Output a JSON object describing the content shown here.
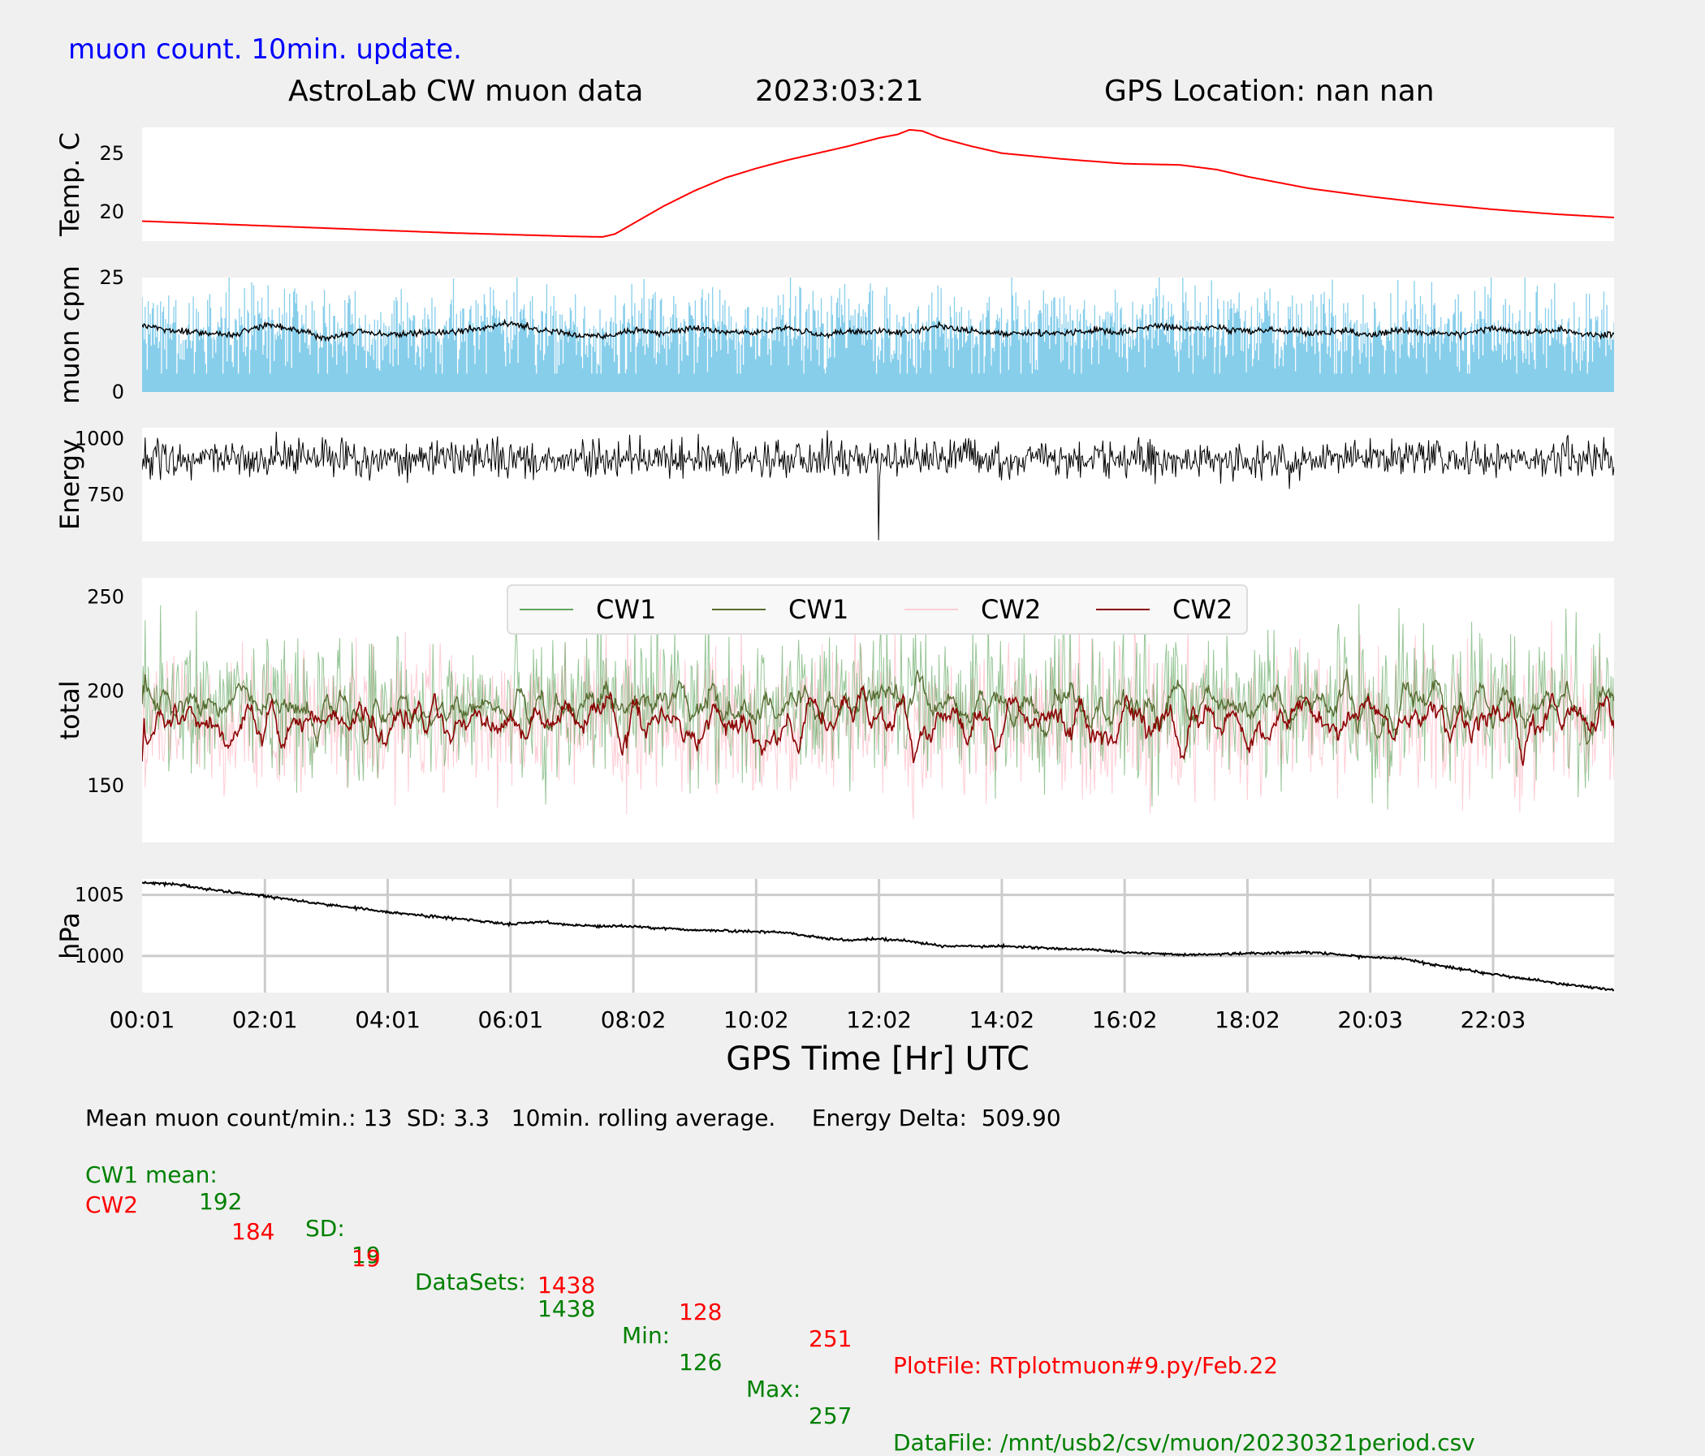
{
  "header": {
    "note": "muon count.  10min. update.",
    "title": "AstroLab CW muon data",
    "date": "2023:03:21",
    "gps": "GPS Location: nan   nan"
  },
  "colors": {
    "note": "#0000ff",
    "temp": "#ff0000",
    "cpm_bars": "#87ceeb",
    "cw1_raw": "#2e8b2e",
    "cw1_avg": "#556b2f",
    "cw2_raw": "#ffc0cb",
    "cw2_avg": "#8b0000",
    "green_text": "#008000",
    "red_text": "#ff0000"
  },
  "chart_data": {
    "type": "line",
    "xlabel": "GPS Time  [Hr] UTC",
    "x_ticks": [
      "00:01",
      "02:01",
      "04:01",
      "06:01",
      "08:02",
      "10:02",
      "12:02",
      "14:02",
      "16:02",
      "18:02",
      "20:03",
      "22:03"
    ],
    "x_tick_hours": [
      0,
      2,
      4,
      6,
      8,
      10,
      12,
      14,
      16,
      18,
      20,
      22
    ],
    "x_range_hours": [
      0,
      23.97
    ],
    "panels": [
      {
        "id": "temp",
        "ylabel": "Temp. C",
        "ylim": [
          17.5,
          27.2
        ],
        "yticks": [
          20,
          25
        ],
        "ytick_labels": [
          "20",
          "25"
        ],
        "series": [
          {
            "style": "line",
            "hours": [
              0,
              1,
              2,
              3,
              4,
              5,
              6,
              7,
              7.5,
              7.7,
              8,
              8.5,
              9,
              9.5,
              10,
              10.5,
              11,
              11.5,
              12,
              12.3,
              12.5,
              12.7,
              13,
              13.5,
              14,
              15,
              16,
              16.9,
              17.5,
              18,
              19,
              20,
              21,
              22,
              23,
              24
            ],
            "values": [
              19.2,
              19.0,
              18.8,
              18.6,
              18.4,
              18.2,
              18.05,
              17.9,
              17.85,
              18.1,
              19.0,
              20.5,
              21.8,
              22.9,
              23.7,
              24.4,
              25.0,
              25.6,
              26.3,
              26.6,
              27.0,
              26.9,
              26.3,
              25.6,
              25.0,
              24.5,
              24.1,
              24.0,
              23.6,
              23.0,
              22.0,
              21.3,
              20.7,
              20.2,
              19.8,
              19.5
            ]
          }
        ]
      },
      {
        "id": "cpm",
        "ylabel": "muon cpm",
        "ylim": [
          0,
          25
        ],
        "yticks": [
          0,
          25
        ],
        "ytick_labels": [
          "0",
          "25"
        ],
        "series": [
          {
            "style": "bars",
            "generated": true,
            "mean": 13,
            "sd": 3.3
          },
          {
            "style": "rolling",
            "hours": [
              0,
              0.5,
              1,
              1.5,
              2,
              2.5,
              3,
              3.5,
              4,
              4.5,
              5,
              5.5,
              6,
              6.5,
              7,
              7.5,
              8,
              8.5,
              9,
              9.5,
              10,
              10.5,
              11,
              11.5,
              12,
              12.5,
              13,
              13.5,
              14,
              14.5,
              15,
              15.5,
              16,
              16.5,
              17,
              17.5,
              18,
              18.5,
              19,
              19.5,
              20,
              20.5,
              21,
              21.5,
              22,
              22.5,
              23,
              23.5,
              24
            ],
            "values": [
              14.5,
              13.5,
              12.8,
              12.5,
              14.8,
              13.5,
              11.8,
              13.3,
              12.5,
              12.9,
              13.0,
              14.0,
              15.0,
              13.5,
              12.6,
              12.2,
              13.5,
              12.8,
              14.0,
              13.3,
              12.8,
              14.2,
              12.4,
              13.2,
              13.3,
              12.9,
              14.5,
              13.2,
              13.0,
              12.7,
              12.9,
              13.5,
              13.0,
              14.6,
              13.8,
              14.0,
              13.4,
              13.5,
              12.8,
              13.4,
              12.5,
              13.6,
              12.9,
              12.6,
              14.0,
              12.9,
              13.6,
              12.4,
              12.6
            ]
          }
        ]
      },
      {
        "id": "energy",
        "ylabel": "Energy",
        "ylim": [
          540,
          1050
        ],
        "yticks": [
          750,
          1000
        ],
        "ytick_labels": [
          "750",
          "1000"
        ],
        "series": [
          {
            "style": "noisy",
            "generated": true,
            "mean": 910,
            "sd": 55,
            "min_hour": 12.0,
            "min_value": 545
          }
        ]
      },
      {
        "id": "total",
        "ylabel": "total",
        "ylim": [
          120,
          260
        ],
        "yticks": [
          150,
          200,
          250
        ],
        "ytick_labels": [
          "150",
          "200",
          "250"
        ],
        "legend": {
          "placement": "top-center",
          "entries": [
            {
              "label": "CW1",
              "color_key": "cw1_raw"
            },
            {
              "label": "CW1",
              "color_key": "cw1_avg"
            },
            {
              "label": "CW2",
              "color_key": "cw2_raw"
            },
            {
              "label": "CW2",
              "color_key": "cw2_avg"
            }
          ]
        },
        "series": [
          {
            "name": "CW1",
            "style": "raw",
            "generated": true,
            "mean": 192,
            "sd": 19,
            "min": 126,
            "max": 257,
            "color_key": "cw1_raw"
          },
          {
            "name": "CW1",
            "style": "rolling",
            "generated": true,
            "mean": 192,
            "amp": 8,
            "color_key": "cw1_avg"
          },
          {
            "name": "CW2",
            "style": "raw",
            "generated": true,
            "mean": 184,
            "sd": 19,
            "min": 128,
            "max": 251,
            "color_key": "cw2_raw"
          },
          {
            "name": "CW2",
            "style": "rolling",
            "generated": true,
            "mean": 184,
            "amp": 9,
            "color_key": "cw2_avg"
          }
        ]
      },
      {
        "id": "pressure",
        "ylabel": "hPa",
        "ylim": [
          997.0,
          1006.3
        ],
        "yticks": [
          1000,
          1005
        ],
        "ytick_labels": [
          "1000",
          "1005"
        ],
        "grid": true,
        "series": [
          {
            "style": "line",
            "hours": [
              0,
              0.5,
              1,
              2,
              3,
              4,
              5,
              6,
              6.5,
              7,
              8,
              9,
              10,
              10.5,
              11,
              11.5,
              12,
              12.5,
              13,
              14,
              15,
              15.5,
              16,
              17,
              18,
              19,
              20,
              20.5,
              21,
              22,
              23,
              23.97
            ],
            "values": [
              1006.0,
              1005.9,
              1005.5,
              1004.9,
              1004.2,
              1003.6,
              1003.1,
              1002.6,
              1002.8,
              1002.5,
              1002.4,
              1002.1,
              1002.0,
              1001.9,
              1001.5,
              1001.3,
              1001.4,
              1001.2,
              1000.8,
              1000.8,
              1000.6,
              1000.5,
              1000.3,
              1000.1,
              1000.2,
              1000.3,
              999.9,
              999.8,
              999.3,
              998.5,
              997.8,
              997.2
            ]
          }
        ]
      }
    ]
  },
  "footer": {
    "line1": "Mean muon count/min.: 13  SD: 3.3   10min. rolling average.     Energy Delta:  509.90",
    "cw1": {
      "label": "CW1 mean:",
      "mean": "192",
      "sd_label": "SD:",
      "sd": "19",
      "datasets_label": "DataSets:",
      "datasets": "1438",
      "min_label": "Min:",
      "min": "126",
      "max_label": "Max:",
      "max": "257",
      "file": "DataFile: /mnt/usb2/csv/muon/20230321period.csv"
    },
    "cw2": {
      "label": "CW2",
      "mean": "184",
      "sd": "19",
      "datasets": "1438",
      "min": "128",
      "max": "251",
      "file": "PlotFile: RTplotmuon#9.py/Feb.22"
    }
  }
}
